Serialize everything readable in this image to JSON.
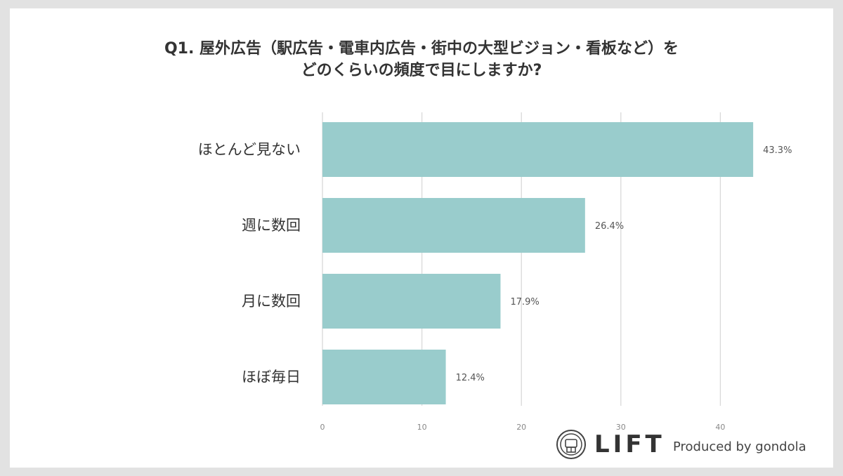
{
  "title_lines": [
    "Q1. 屋外広告（駅広告・電車内広告・街中の大型ビジョン・看板など）を",
    "どのくらいの頻度で目にしますか?"
  ],
  "chart_data": {
    "type": "bar",
    "orientation": "horizontal",
    "categories": [
      "ほとんど見ない",
      "週に数回",
      "月に数回",
      "ほぼ毎日"
    ],
    "values": [
      43.3,
      26.4,
      17.9,
      12.4
    ],
    "value_labels": [
      "43.3%",
      "26.4%",
      "17.9%",
      "12.4%"
    ],
    "xticks": [
      0,
      10,
      20,
      30,
      40
    ],
    "xlim": [
      0,
      43.3
    ],
    "grid": "vertical",
    "bar_color": "#99cccc"
  },
  "branding": {
    "logo_text": "LIFT",
    "produced_by": "Produced by gondola"
  },
  "colors": {
    "background": "#e2e2e2",
    "card": "#ffffff",
    "grid": "#d9d9d9",
    "text": "#333333"
  }
}
